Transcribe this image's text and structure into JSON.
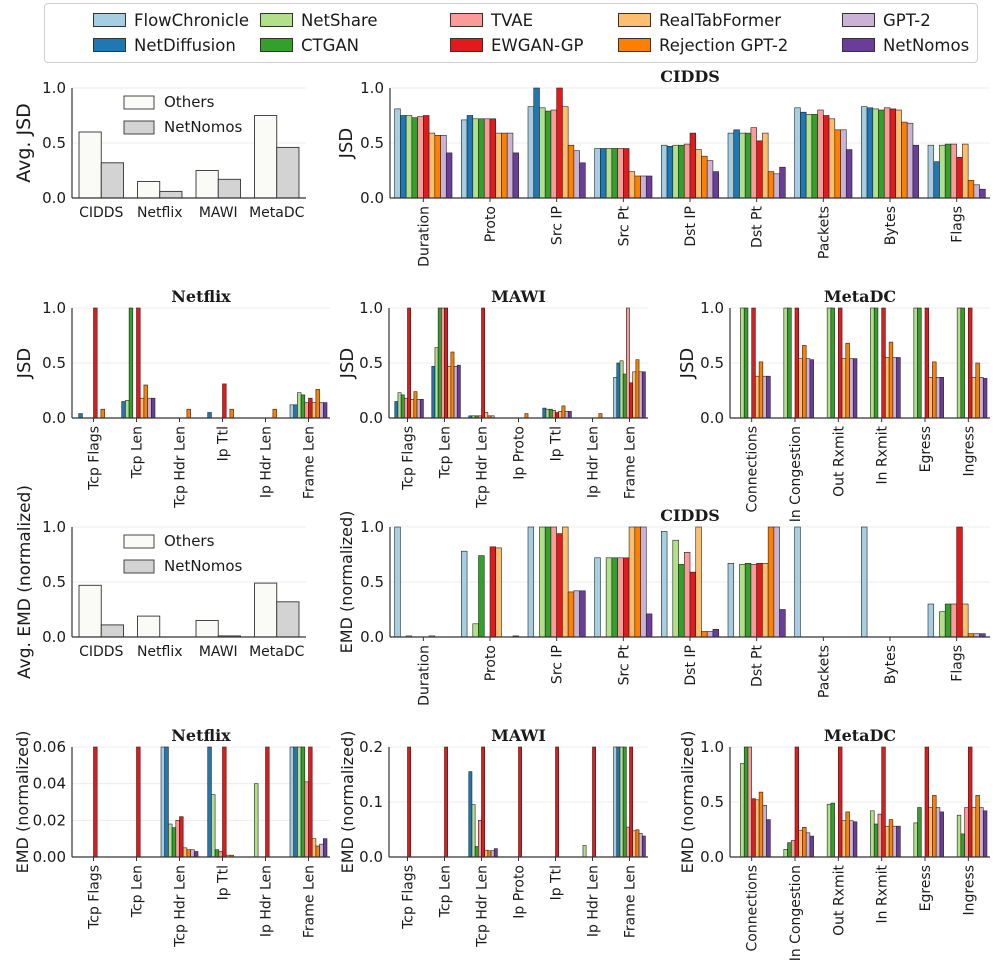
{
  "legend": {
    "items": [
      {
        "name": "FlowChronicle",
        "color": "#a6cee3"
      },
      {
        "name": "NetDiffusion",
        "color": "#1f78b4"
      },
      {
        "name": "NetShare",
        "color": "#b2df8a"
      },
      {
        "name": "CTGAN",
        "color": "#33a02c"
      },
      {
        "name": "TVAE",
        "color": "#fb9a99"
      },
      {
        "name": "EWGAN-GP",
        "color": "#e31a1c"
      },
      {
        "name": "RealTabFormer",
        "color": "#fdbf6f"
      },
      {
        "name": "Rejection GPT-2",
        "color": "#ff7f00"
      },
      {
        "name": "GPT-2",
        "color": "#cab2d6"
      },
      {
        "name": "NetNomos",
        "color": "#6a3d9a"
      }
    ]
  },
  "chart_data": [
    {
      "id": "avg-jsd",
      "type": "bar",
      "title": "",
      "xlabel": "",
      "ylabel": "Avg. JSD",
      "categories": [
        "CIDDS",
        "Netflix",
        "MAWI",
        "MetaDC"
      ],
      "yticks": [
        "0.0",
        "0.5",
        "1.0"
      ],
      "ylim": [
        0,
        1.0
      ],
      "legend_position": "upper-center",
      "series": [
        {
          "name": "Others",
          "color": "#fafaf7",
          "values": [
            0.6,
            0.15,
            0.25,
            0.75
          ]
        },
        {
          "name": "NetNomos",
          "color": "#d3d3d3",
          "values": [
            0.32,
            0.06,
            0.17,
            0.46
          ]
        }
      ]
    },
    {
      "id": "cidds-jsd",
      "type": "bar",
      "title": "CIDDS",
      "xlabel": "",
      "ylabel": "JSD",
      "categories": [
        "Duration",
        "Proto",
        "Src IP",
        "Src Pt",
        "Dst IP",
        "Dst Pt",
        "Packets",
        "Bytes",
        "Flags"
      ],
      "yticks": [
        "0.0",
        "0.5",
        "1.0"
      ],
      "ylim": [
        0,
        1.0
      ],
      "values": [
        [
          0.81,
          0.75,
          0.75,
          0.73,
          0.74,
          0.75,
          0.59,
          0.57,
          0.57,
          0.41
        ],
        [
          0.71,
          0.75,
          0.72,
          0.72,
          0.72,
          0.72,
          0.59,
          0.59,
          0.59,
          0.41
        ],
        [
          0.83,
          1.0,
          0.82,
          0.79,
          0.8,
          1.0,
          0.83,
          0.48,
          0.43,
          0.32
        ],
        [
          0.45,
          0.45,
          0.45,
          0.45,
          0.45,
          0.45,
          0.24,
          0.2,
          0.2,
          0.2
        ],
        [
          0.48,
          0.47,
          0.48,
          0.48,
          0.49,
          0.59,
          0.44,
          0.38,
          0.34,
          0.24
        ],
        [
          0.59,
          0.62,
          0.59,
          0.59,
          0.64,
          0.52,
          0.59,
          0.24,
          0.22,
          0.28
        ],
        [
          0.82,
          0.78,
          0.76,
          0.76,
          0.8,
          0.75,
          0.72,
          0.62,
          0.62,
          0.44
        ],
        [
          0.83,
          0.82,
          0.81,
          0.8,
          0.82,
          0.81,
          0.8,
          0.69,
          0.68,
          0.48
        ],
        [
          0.48,
          0.33,
          0.48,
          0.49,
          0.49,
          0.37,
          0.49,
          0.16,
          0.12,
          0.08
        ]
      ]
    },
    {
      "id": "netflix-jsd",
      "type": "bar",
      "title": "Netflix",
      "xlabel": "",
      "ylabel": "JSD",
      "categories": [
        "Tcp Flags",
        "Tcp Len",
        "Tcp Hdr Len",
        "Ip Ttl",
        "Ip Hdr Len",
        "Frame Len"
      ],
      "yticks": [
        "0.0",
        "0.5",
        "1.0"
      ],
      "ylim": [
        0,
        1.0
      ],
      "values": [
        [
          0.0,
          0.04,
          0.0,
          0.0,
          0.0,
          1.0,
          0.0,
          0.08,
          0.0,
          0.0
        ],
        [
          0.0,
          0.15,
          0.16,
          1.0,
          0.0,
          1.0,
          0.18,
          0.3,
          0.18,
          0.18
        ],
        [
          0.0,
          0.0,
          0.0,
          0.0,
          0.0,
          0.0,
          0.0,
          0.08,
          0.0,
          0.0
        ],
        [
          0.0,
          0.05,
          0.0,
          0.0,
          0.0,
          0.31,
          0.0,
          0.08,
          0.0,
          0.0
        ],
        [
          0.0,
          0.0,
          0.0,
          0.0,
          0.0,
          0.0,
          0.0,
          0.08,
          0.0,
          0.0
        ],
        [
          0.12,
          0.12,
          0.23,
          0.21,
          0.14,
          0.18,
          0.14,
          0.26,
          0.14,
          0.14
        ]
      ]
    },
    {
      "id": "mawi-jsd",
      "type": "bar",
      "title": "MAWI",
      "xlabel": "",
      "ylabel": "JSD",
      "categories": [
        "Tcp Flags",
        "Tcp Len",
        "Tcp Hdr Len",
        "Ip Proto",
        "Ip Ttl",
        "Ip Hdr Len",
        "Frame Len"
      ],
      "yticks": [
        "0.0",
        "0.5",
        "1.0"
      ],
      "ylim": [
        0,
        1.0
      ],
      "values": [
        [
          0.0,
          0.15,
          0.23,
          0.21,
          0.18,
          1.0,
          0.17,
          0.24,
          0.17,
          0.17
        ],
        [
          0.0,
          0.47,
          0.64,
          1.0,
          1.0,
          1.0,
          0.47,
          0.6,
          0.47,
          0.48
        ],
        [
          0.0,
          0.02,
          0.02,
          0.02,
          0.02,
          1.0,
          0.05,
          0.02,
          0.02,
          0.0
        ],
        [
          0.0,
          0.0,
          0.0,
          0.0,
          0.0,
          0.0,
          0.0,
          0.04,
          0.0,
          0.0
        ],
        [
          0.0,
          0.09,
          0.08,
          0.08,
          0.07,
          0.05,
          0.06,
          0.11,
          0.06,
          0.06
        ],
        [
          0.0,
          0.0,
          0.0,
          0.0,
          0.0,
          0.0,
          0.0,
          0.04,
          0.0,
          0.0
        ],
        [
          0.37,
          0.5,
          0.52,
          0.4,
          1.0,
          0.32,
          0.42,
          0.53,
          0.42,
          0.42
        ]
      ]
    },
    {
      "id": "metadc-jsd",
      "type": "bar",
      "title": "MetaDC",
      "xlabel": "",
      "ylabel": "JSD",
      "categories": [
        "Connections",
        "In Congestion",
        "Out Rxmit",
        "In Rxmit",
        "Egress",
        "Ingress"
      ],
      "yticks": [
        "0.0",
        "0.5",
        "1.0"
      ],
      "ylim": [
        0,
        1.0
      ],
      "values": [
        [
          0.0,
          0.0,
          1.0,
          1.0,
          0.0,
          1.0,
          0.38,
          0.51,
          0.38,
          0.38
        ],
        [
          0.0,
          0.0,
          1.0,
          1.0,
          0.0,
          1.0,
          0.54,
          0.66,
          0.54,
          0.53
        ],
        [
          0.0,
          0.0,
          1.0,
          1.0,
          0.0,
          1.0,
          0.54,
          0.68,
          0.54,
          0.54
        ],
        [
          0.0,
          0.0,
          1.0,
          1.0,
          0.0,
          1.0,
          0.55,
          0.69,
          0.55,
          0.55
        ],
        [
          0.0,
          0.0,
          1.0,
          1.0,
          0.0,
          1.0,
          0.37,
          0.51,
          0.37,
          0.37
        ],
        [
          0.0,
          0.0,
          1.0,
          1.0,
          0.0,
          1.0,
          0.37,
          0.5,
          0.37,
          0.36
        ]
      ]
    },
    {
      "id": "avg-emd",
      "type": "bar",
      "title": "",
      "xlabel": "",
      "ylabel": "Avg. EMD (normalized)",
      "categories": [
        "CIDDS",
        "Netflix",
        "MAWI",
        "MetaDC"
      ],
      "yticks": [
        "0.0",
        "0.5",
        "1.0"
      ],
      "ylim": [
        0,
        1.0
      ],
      "legend_position": "upper-center",
      "series": [
        {
          "name": "Others",
          "color": "#fafaf7",
          "values": [
            0.47,
            0.19,
            0.15,
            0.49
          ]
        },
        {
          "name": "NetNomos",
          "color": "#d3d3d3",
          "values": [
            0.11,
            0.0,
            0.01,
            0.32
          ]
        }
      ]
    },
    {
      "id": "cidds-emd",
      "type": "bar",
      "title": "CIDDS",
      "xlabel": "",
      "ylabel": "EMD (normalized)",
      "categories": [
        "Duration",
        "Proto",
        "Src IP",
        "Src Pt",
        "Dst IP",
        "Dst Pt",
        "Packets",
        "Bytes",
        "Flags"
      ],
      "yticks": [
        "0.0",
        "0.5",
        "1.0"
      ],
      "ylim": [
        0,
        1.0
      ],
      "values": [
        [
          1.0,
          0.0,
          0.01,
          0.0,
          0.0,
          0.0,
          0.01,
          0.0,
          0.0,
          0.0
        ],
        [
          0.78,
          0.0,
          0.12,
          0.74,
          0.0,
          0.82,
          0.81,
          0.0,
          0.0,
          0.01
        ],
        [
          1.0,
          0.0,
          1.0,
          1.0,
          1.0,
          0.94,
          1.0,
          0.41,
          0.42,
          0.42
        ],
        [
          0.72,
          0.0,
          0.72,
          0.72,
          0.72,
          0.72,
          1.0,
          1.0,
          1.0,
          0.21
        ],
        [
          0.96,
          0.0,
          0.88,
          0.66,
          0.77,
          0.59,
          1.0,
          0.05,
          0.05,
          0.07
        ],
        [
          0.67,
          0.0,
          0.66,
          0.67,
          0.66,
          0.67,
          0.67,
          1.0,
          1.0,
          0.25
        ],
        [
          1.0,
          0.0,
          0.0,
          0.0,
          0.0,
          0.0,
          0.0,
          0.0,
          0.0,
          0.0
        ],
        [
          1.0,
          0.0,
          0.0,
          0.0,
          0.0,
          0.0,
          0.0,
          0.0,
          0.0,
          0.0
        ],
        [
          0.3,
          0.0,
          0.23,
          0.3,
          0.3,
          1.0,
          0.3,
          0.03,
          0.03,
          0.03
        ]
      ]
    },
    {
      "id": "netflix-emd",
      "type": "bar",
      "title": "Netflix",
      "xlabel": "",
      "ylabel": "EMD (normalized)",
      "categories": [
        "Tcp Flags",
        "Tcp Len",
        "Tcp Hdr Len",
        "Ip Ttl",
        "Ip Hdr Len",
        "Frame Len"
      ],
      "yticks": [
        "0.00",
        "0.02",
        "0.04",
        "0.06"
      ],
      "ylim": [
        0,
        0.06
      ],
      "values": [
        [
          0.0,
          0.0,
          0.0,
          0.0,
          0.0,
          0.06,
          0.0,
          0.0,
          0.0,
          0.0
        ],
        [
          0.0,
          0.0,
          0.0,
          0.0,
          0.0,
          0.06,
          0.0,
          0.0,
          0.0,
          0.0
        ],
        [
          0.06,
          0.06,
          0.018,
          0.016,
          0.02,
          0.022,
          0.005,
          0.004,
          0.004,
          0.003
        ],
        [
          0.0,
          0.06,
          0.034,
          0.004,
          0.003,
          0.06,
          0.001,
          0.001,
          0.0,
          0.0
        ],
        [
          0.0,
          0.0,
          0.04,
          0.0,
          0.0,
          0.06,
          0.0,
          0.0,
          0.0,
          0.0
        ],
        [
          0.06,
          0.06,
          0.06,
          0.06,
          0.041,
          0.06,
          0.01,
          0.006,
          0.007,
          0.01
        ]
      ]
    },
    {
      "id": "mawi-emd",
      "type": "bar",
      "title": "MAWI",
      "xlabel": "",
      "ylabel": "EMD (normalized)",
      "categories": [
        "Tcp Flags",
        "Tcp Len",
        "Tcp Hdr Len",
        "Ip Proto",
        "Ip Ttl",
        "Ip Hdr Len",
        "Frame Len"
      ],
      "yticks": [
        "0.0",
        "0.1",
        "0.2"
      ],
      "ylim": [
        0,
        0.21
      ],
      "values": [
        [
          0.0,
          0.0,
          0.0,
          0.0,
          0.0,
          0.21,
          0.0,
          0.0,
          0.0,
          0.0
        ],
        [
          0.0,
          0.0,
          0.0,
          0.0,
          0.0,
          0.21,
          0.0,
          0.0,
          0.0,
          0.0
        ],
        [
          0.0,
          0.163,
          0.1,
          0.02,
          0.07,
          0.21,
          0.013,
          0.012,
          0.012,
          0.016
        ],
        [
          0.0,
          0.0,
          0.0,
          0.0,
          0.0,
          0.21,
          0.0,
          0.0,
          0.0,
          0.0
        ],
        [
          0.0,
          0.0,
          0.0,
          0.0,
          0.0,
          0.21,
          0.0,
          0.0,
          0.0,
          0.0
        ],
        [
          0.0,
          0.0,
          0.022,
          0.0,
          0.0,
          0.21,
          0.0,
          0.0,
          0.0,
          0.0
        ],
        [
          0.21,
          0.21,
          0.21,
          0.21,
          0.057,
          0.21,
          0.05,
          0.052,
          0.045,
          0.04
        ]
      ]
    },
    {
      "id": "metadc-emd",
      "type": "bar",
      "title": "MetaDC",
      "xlabel": "",
      "ylabel": "EMD (normalized)",
      "categories": [
        "Connections",
        "In Congestion",
        "Out Rxmit",
        "In Rxmit",
        "Egress",
        "Ingress"
      ],
      "yticks": [
        "0.0",
        "0.5",
        "1.0"
      ],
      "ylim": [
        0,
        1.0
      ],
      "values": [
        [
          0.0,
          0.0,
          0.85,
          1.0,
          1.0,
          0.53,
          0.52,
          0.59,
          0.47,
          0.34
        ],
        [
          0.0,
          0.0,
          0.07,
          0.13,
          0.15,
          1.0,
          0.24,
          0.27,
          0.22,
          0.19
        ],
        [
          0.0,
          0.0,
          0.48,
          0.49,
          0.0,
          1.0,
          0.33,
          0.41,
          0.33,
          0.32
        ],
        [
          0.0,
          0.0,
          0.42,
          0.3,
          0.39,
          1.0,
          0.28,
          0.34,
          0.28,
          0.28
        ],
        [
          0.0,
          0.0,
          0.31,
          0.45,
          0.0,
          1.0,
          0.45,
          0.56,
          0.45,
          0.41
        ],
        [
          0.0,
          0.0,
          0.38,
          0.21,
          0.45,
          1.0,
          0.45,
          0.56,
          0.45,
          0.42
        ]
      ]
    }
  ]
}
